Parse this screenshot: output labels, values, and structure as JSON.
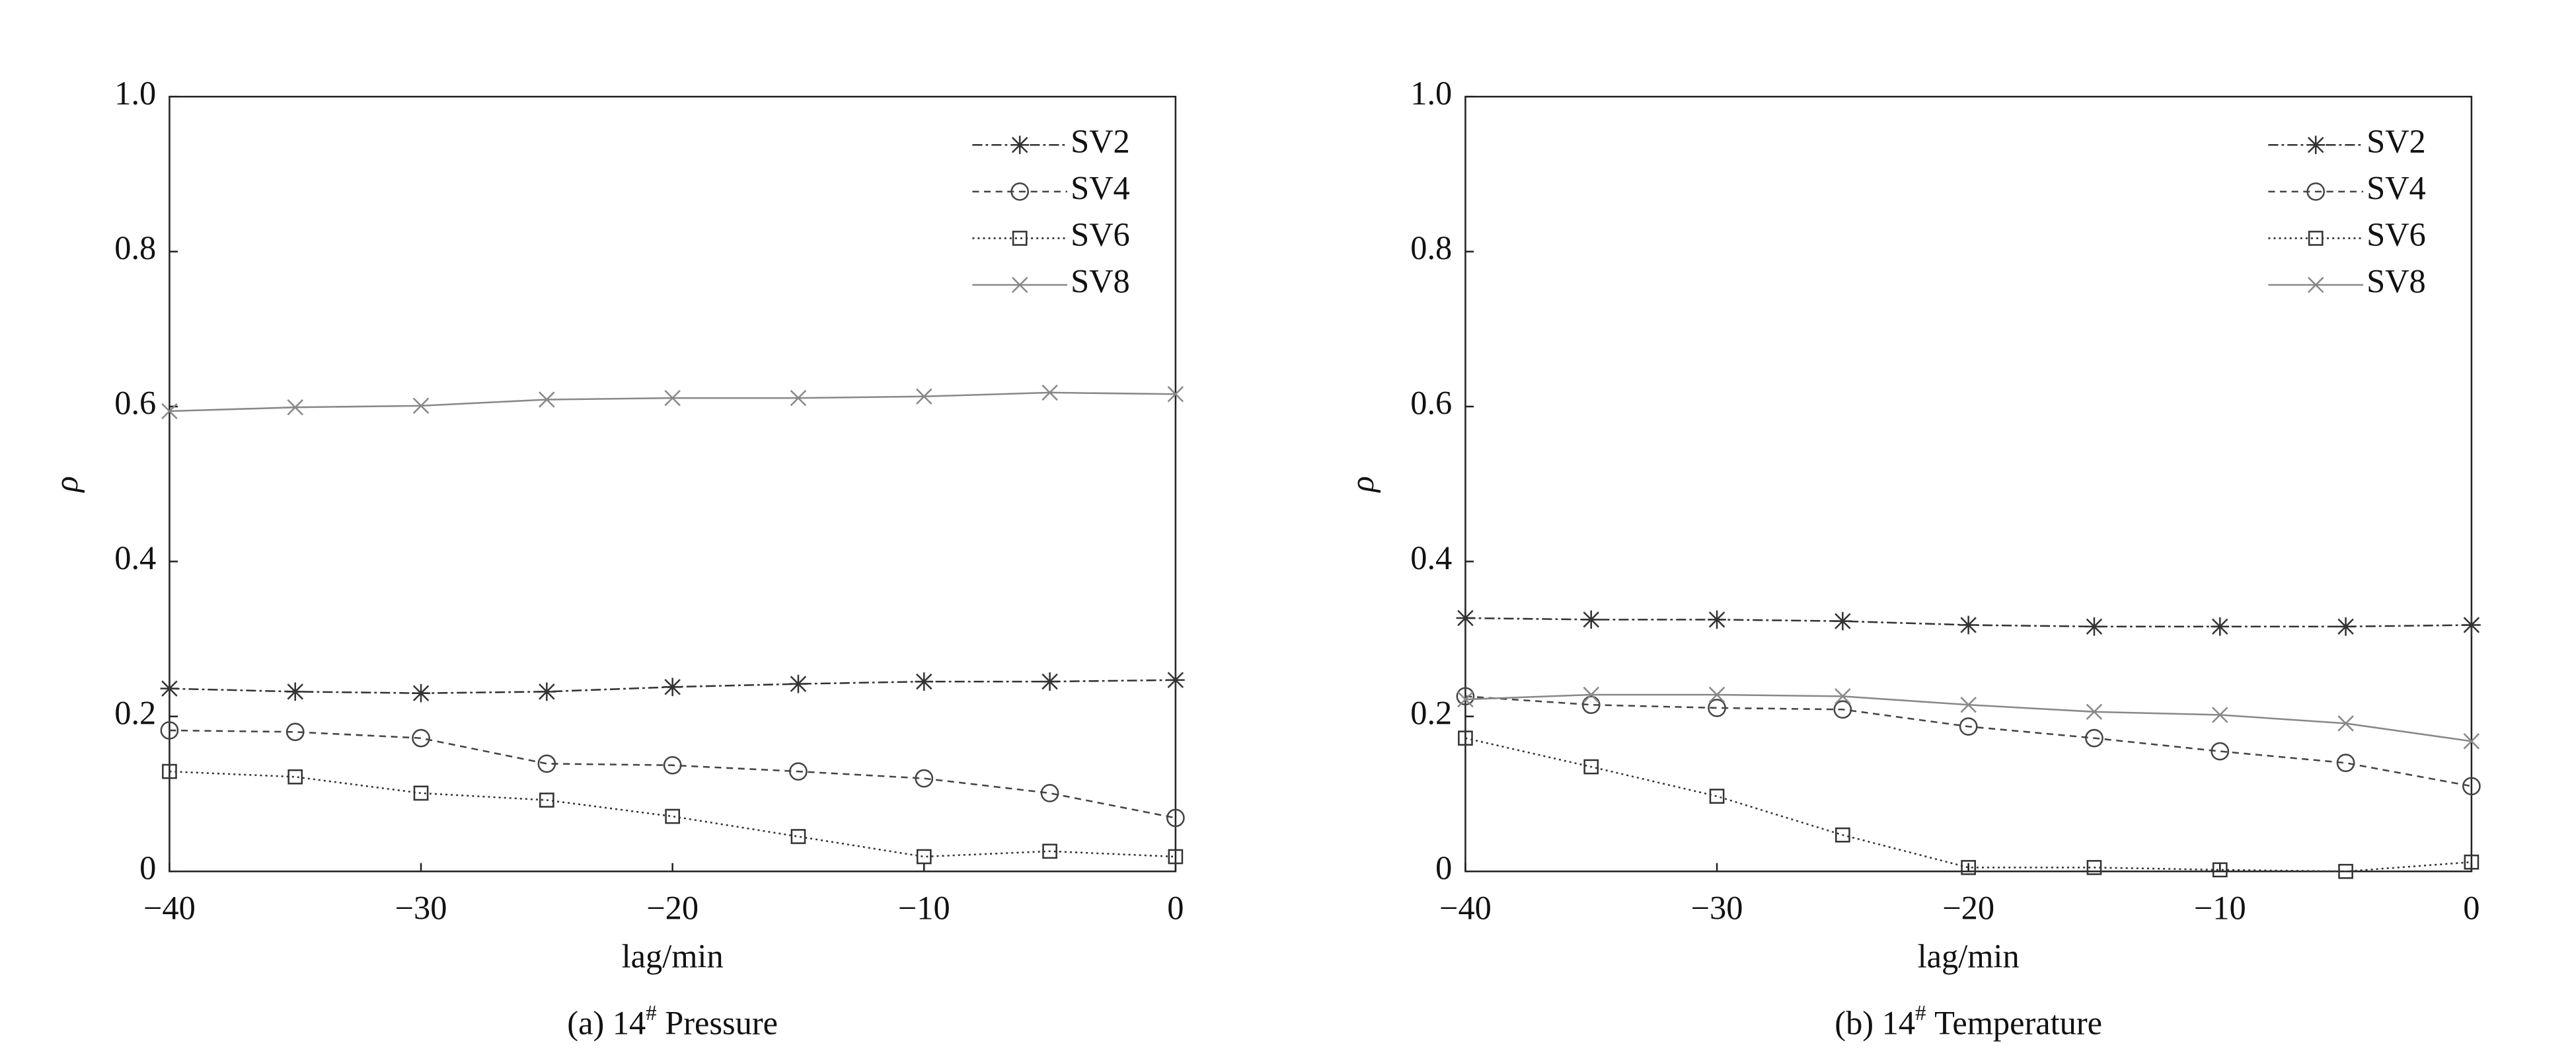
{
  "chart_data": [
    {
      "type": "line",
      "caption_prefix": "(a) 14",
      "caption_sup": "#",
      "caption_suffix": "Pressure",
      "xlabel": "lag/min",
      "ylabel": "ρ",
      "x": [
        -40,
        -35,
        -30,
        -25,
        -20,
        -15,
        -10,
        -5,
        0
      ],
      "xlim": [
        -40,
        0
      ],
      "xticks": [
        {
          "value": -40,
          "label": "−40"
        },
        {
          "value": -30,
          "label": "−30"
        },
        {
          "value": -20,
          "label": "−20"
        },
        {
          "value": -10,
          "label": "−10"
        },
        0
      ],
      "ylim": [
        0,
        1
      ],
      "yticks": [
        0,
        0.2,
        0.4,
        0.6,
        0.8,
        {
          "value": 1,
          "label": "1.0"
        }
      ],
      "grid": false,
      "legend": "upper right",
      "series": [
        {
          "name": "SV2",
          "color": "#333333",
          "marker": "star",
          "linestyle": "dashdot",
          "values": [
            0.236,
            0.232,
            0.23,
            0.232,
            0.238,
            0.242,
            0.245,
            0.245,
            0.247
          ]
        },
        {
          "name": "SV4",
          "color": "#444444",
          "marker": "circle",
          "linestyle": "dashed",
          "values": [
            0.182,
            0.18,
            0.172,
            0.139,
            0.137,
            0.129,
            0.12,
            0.101,
            0.069
          ]
        },
        {
          "name": "SV6",
          "color": "#333333",
          "marker": "square",
          "linestyle": "dotted",
          "values": [
            0.129,
            0.122,
            0.101,
            0.092,
            0.071,
            0.045,
            0.019,
            0.026,
            0.019
          ]
        },
        {
          "name": "SV8",
          "color": "#888888",
          "marker": "x",
          "linestyle": "solid",
          "values": [
            0.594,
            0.599,
            0.601,
            0.609,
            0.611,
            0.611,
            0.613,
            0.618,
            0.616
          ]
        }
      ]
    },
    {
      "type": "line",
      "caption_prefix": "(b) 14",
      "caption_sup": "#",
      "caption_suffix": "Temperature",
      "xlabel": "lag/min",
      "ylabel": "ρ",
      "x": [
        -40,
        -35,
        -30,
        -25,
        -20,
        -15,
        -10,
        -5,
        0
      ],
      "xlim": [
        -40,
        0
      ],
      "xticks": [
        {
          "value": -40,
          "label": "−40"
        },
        {
          "value": -30,
          "label": "−30"
        },
        {
          "value": -20,
          "label": "−20"
        },
        {
          "value": -10,
          "label": "−10"
        },
        0
      ],
      "ylim": [
        0,
        1
      ],
      "yticks": [
        0,
        0.2,
        0.4,
        0.6,
        0.8,
        {
          "value": 1,
          "label": "1.0"
        }
      ],
      "grid": false,
      "legend": "upper right",
      "series": [
        {
          "name": "SV2",
          "color": "#333333",
          "marker": "star",
          "linestyle": "dashdot",
          "values": [
            0.327,
            0.325,
            0.325,
            0.323,
            0.318,
            0.316,
            0.316,
            0.316,
            0.318
          ]
        },
        {
          "name": "SV4",
          "color": "#444444",
          "marker": "circle",
          "linestyle": "dashed",
          "values": [
            0.226,
            0.215,
            0.211,
            0.209,
            0.187,
            0.172,
            0.155,
            0.14,
            0.11
          ]
        },
        {
          "name": "SV6",
          "color": "#333333",
          "marker": "square",
          "linestyle": "dotted",
          "values": [
            0.172,
            0.135,
            0.097,
            0.047,
            0.005,
            0.005,
            0.002,
            0.0,
            0.012
          ]
        },
        {
          "name": "SV8",
          "color": "#888888",
          "marker": "x",
          "linestyle": "solid",
          "values": [
            0.222,
            0.228,
            0.228,
            0.226,
            0.215,
            0.206,
            0.202,
            0.191,
            0.168
          ]
        }
      ]
    }
  ]
}
